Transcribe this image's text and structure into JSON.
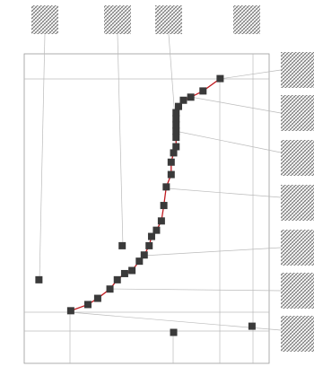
{
  "chart_data": {
    "type": "scatter",
    "xlim": [
      0,
      1
    ],
    "ylim": [
      0,
      1
    ],
    "series": [
      {
        "color": "#3a3a3a",
        "line_color": "#c0191f",
        "x": [
          0.8,
          0.73,
          0.68,
          0.65,
          0.63,
          0.62,
          0.62,
          0.62,
          0.62,
          0.62,
          0.62,
          0.61,
          0.6,
          0.6,
          0.58,
          0.57,
          0.56,
          0.54,
          0.52,
          0.51,
          0.49,
          0.47,
          0.44,
          0.41,
          0.38,
          0.35,
          0.3,
          0.26,
          0.19
        ],
        "values": [
          0.92,
          0.88,
          0.86,
          0.85,
          0.83,
          0.81,
          0.79,
          0.77,
          0.75,
          0.73,
          0.7,
          0.68,
          0.65,
          0.61,
          0.57,
          0.51,
          0.46,
          0.43,
          0.41,
          0.38,
          0.35,
          0.33,
          0.3,
          0.29,
          0.27,
          0.24,
          0.21,
          0.19,
          0.17
        ]
      },
      {
        "color": "#3a3a3a",
        "x": [
          0.4,
          0.06,
          0.93,
          0.61
        ],
        "values": [
          0.38,
          0.27,
          0.12,
          0.1
        ]
      }
    ]
  }
}
